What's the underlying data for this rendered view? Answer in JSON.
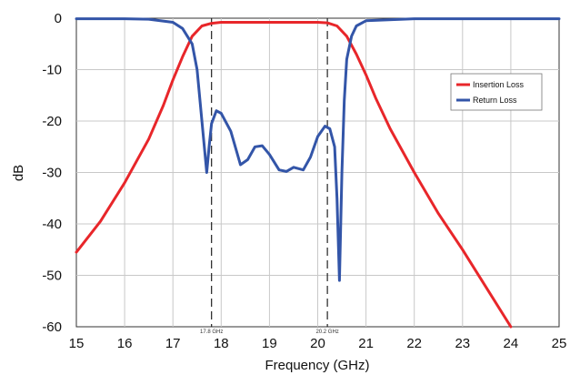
{
  "chart_data": {
    "type": "line",
    "title": "",
    "xlabel": "Frequency (GHz)",
    "ylabel": "dB",
    "xlim": [
      15,
      25
    ],
    "ylim": [
      -60,
      0
    ],
    "x_ticks": [
      15,
      16,
      17,
      18,
      19,
      20,
      21,
      22,
      23,
      24,
      25
    ],
    "y_ticks": [
      0,
      -10,
      -20,
      -30,
      -40,
      -50,
      -60
    ],
    "grid": true,
    "legend_position": "right",
    "markers": [
      {
        "x": 17.8,
        "label": "17.8 GHz"
      },
      {
        "x": 20.2,
        "label": "20.2 GHz"
      }
    ],
    "series": [
      {
        "name": "Insertion Loss",
        "color": "#e8262a",
        "points": [
          [
            15.0,
            -45.5
          ],
          [
            15.5,
            -39.5
          ],
          [
            16.0,
            -32.0
          ],
          [
            16.5,
            -23.5
          ],
          [
            16.8,
            -17.0
          ],
          [
            17.0,
            -12.0
          ],
          [
            17.2,
            -7.5
          ],
          [
            17.4,
            -3.5
          ],
          [
            17.6,
            -1.5
          ],
          [
            17.8,
            -1.0
          ],
          [
            18.0,
            -0.8
          ],
          [
            19.0,
            -0.8
          ],
          [
            20.0,
            -0.8
          ],
          [
            20.2,
            -0.9
          ],
          [
            20.4,
            -1.5
          ],
          [
            20.6,
            -3.5
          ],
          [
            20.8,
            -7.0
          ],
          [
            21.0,
            -11.0
          ],
          [
            21.2,
            -15.5
          ],
          [
            21.5,
            -21.5
          ],
          [
            22.0,
            -30.0
          ],
          [
            22.5,
            -38.0
          ],
          [
            23.0,
            -45.0
          ],
          [
            23.5,
            -52.5
          ],
          [
            24.0,
            -60.0
          ]
        ]
      },
      {
        "name": "Return Loss",
        "color": "#3355a8",
        "points": [
          [
            15.0,
            -0.1
          ],
          [
            16.0,
            -0.1
          ],
          [
            16.5,
            -0.2
          ],
          [
            17.0,
            -0.8
          ],
          [
            17.2,
            -2.0
          ],
          [
            17.4,
            -5.0
          ],
          [
            17.5,
            -10.0
          ],
          [
            17.6,
            -20.0
          ],
          [
            17.7,
            -30.0
          ],
          [
            17.75,
            -25.0
          ],
          [
            17.8,
            -20.5
          ],
          [
            17.9,
            -18.0
          ],
          [
            18.0,
            -18.5
          ],
          [
            18.2,
            -22.0
          ],
          [
            18.4,
            -28.5
          ],
          [
            18.55,
            -27.5
          ],
          [
            18.7,
            -25.0
          ],
          [
            18.85,
            -24.8
          ],
          [
            19.0,
            -26.5
          ],
          [
            19.2,
            -29.5
          ],
          [
            19.35,
            -29.8
          ],
          [
            19.5,
            -29.0
          ],
          [
            19.7,
            -29.5
          ],
          [
            19.85,
            -27.0
          ],
          [
            20.0,
            -23.0
          ],
          [
            20.15,
            -21.0
          ],
          [
            20.25,
            -21.5
          ],
          [
            20.35,
            -25.0
          ],
          [
            20.4,
            -35.0
          ],
          [
            20.45,
            -51.0
          ],
          [
            20.5,
            -30.0
          ],
          [
            20.55,
            -16.0
          ],
          [
            20.6,
            -8.0
          ],
          [
            20.7,
            -3.5
          ],
          [
            20.8,
            -1.5
          ],
          [
            21.0,
            -0.5
          ],
          [
            22.0,
            -0.1
          ],
          [
            25.0,
            -0.1
          ]
        ]
      }
    ]
  }
}
